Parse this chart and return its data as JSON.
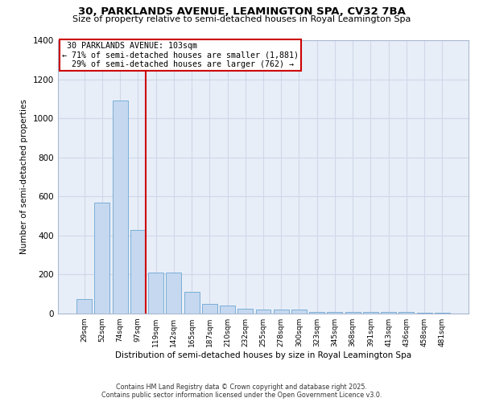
{
  "title": "30, PARKLANDS AVENUE, LEAMINGTON SPA, CV32 7BA",
  "subtitle": "Size of property relative to semi-detached houses in Royal Leamington Spa",
  "xlabel": "Distribution of semi-detached houses by size in Royal Leamington Spa",
  "ylabel": "Number of semi-detached properties",
  "categories": [
    "29sqm",
    "52sqm",
    "74sqm",
    "97sqm",
    "119sqm",
    "142sqm",
    "165sqm",
    "187sqm",
    "210sqm",
    "232sqm",
    "255sqm",
    "278sqm",
    "300sqm",
    "323sqm",
    "345sqm",
    "368sqm",
    "391sqm",
    "413sqm",
    "436sqm",
    "458sqm",
    "481sqm"
  ],
  "values": [
    75,
    570,
    1090,
    430,
    210,
    210,
    110,
    50,
    40,
    25,
    20,
    20,
    20,
    10,
    10,
    10,
    10,
    10,
    10,
    5,
    5
  ],
  "bar_color": "#c5d8f0",
  "bar_edgecolor": "#7aaed6",
  "grid_color": "#d0d8e8",
  "background_color": "#e8eef8",
  "property_line_x": 3.45,
  "percent_smaller": 71,
  "count_smaller": 1881,
  "percent_larger": 29,
  "count_larger": 762,
  "annotation_address": "30 PARKLANDS AVENUE: 103sqm",
  "ylim": [
    0,
    1400
  ],
  "yticks": [
    0,
    200,
    400,
    600,
    800,
    1000,
    1200,
    1400
  ],
  "footer_line1": "Contains HM Land Registry data © Crown copyright and database right 2025.",
  "footer_line2": "Contains public sector information licensed under the Open Government Licence v3.0."
}
